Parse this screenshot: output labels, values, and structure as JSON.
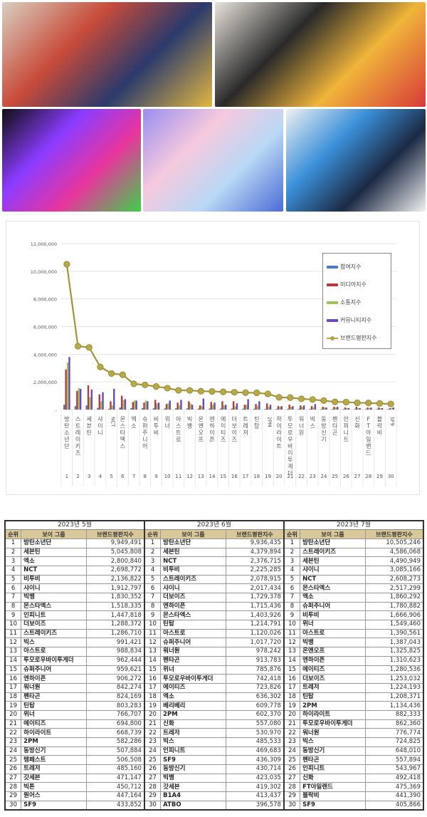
{
  "photos": [
    {
      "label": "group-photo-1",
      "colors": [
        "#d9cfc0",
        "#c84b3a",
        "#2b3a6b",
        "#e2b642"
      ]
    },
    {
      "label": "group-photo-2",
      "colors": [
        "#e8e4dc",
        "#2a2a2a",
        "#f0b43a",
        "#d73a3a"
      ]
    },
    {
      "label": "group-photo-3",
      "colors": [
        "#0f0f12",
        "#8b3cff",
        "#e8359c",
        "#3ecf4a"
      ]
    },
    {
      "label": "group-photo-4",
      "colors": [
        "#9a8ef0",
        "#f6c9de",
        "#b9d8f5",
        "#4a6bd6"
      ]
    },
    {
      "label": "group-photo-5",
      "colors": [
        "#eef0f2",
        "#3a8fd9",
        "#1c2a44",
        "#f2f2f2"
      ]
    }
  ],
  "chart_data": {
    "type": "bar+line",
    "title": "",
    "xlabel": "",
    "ylabel": "",
    "ylim": [
      0,
      12000000
    ],
    "yticks": [
      "-",
      "2,000,000",
      "4,000,000",
      "6,000,000",
      "8,000,000",
      "10,000,000",
      "12,000,000"
    ],
    "grid": true,
    "legend_position": "right-inside",
    "categories": [
      "방탄소년단",
      "스트레이키즈",
      "세븐틴",
      "샤이니",
      "NCT",
      "몬스타엑스",
      "엑소",
      "슈퍼주니어",
      "비투비",
      "위너",
      "아스트로",
      "빅뱅",
      "온앤오프",
      "엔하이픈",
      "에이티즈",
      "더보이즈",
      "트레저",
      "틴탑",
      "2PM",
      "하이라이트",
      "투모로우바이투게더",
      "워너원",
      "빅스",
      "동방신기",
      "펜타곤",
      "인피니트",
      "신화",
      "FT아일랜드",
      "블락비",
      "SF9"
    ],
    "category_numbers": [
      "1",
      "2",
      "3",
      "4",
      "5",
      "6",
      "7",
      "8",
      "9",
      "10",
      "11",
      "12",
      "13",
      "14",
      "15",
      "16",
      "17",
      "18",
      "19",
      "20",
      "21",
      "22",
      "23",
      "24",
      "25",
      "26",
      "27",
      "28",
      "29",
      "30"
    ],
    "series": [
      {
        "name": "참여지수",
        "color": "#4a7bc8",
        "values": [
          350000,
          250000,
          300000,
          120000,
          60000,
          150000,
          100000,
          100000,
          90000,
          80000,
          90000,
          80000,
          70000,
          70000,
          70000,
          70000,
          60000,
          60000,
          50000,
          50000,
          50000,
          50000,
          50000,
          40000,
          40000,
          40000,
          40000,
          40000,
          40000,
          40000
        ]
      },
      {
        "name": "미디어지수",
        "color": "#b83a3a",
        "values": [
          2900000,
          1350000,
          1750000,
          1100000,
          600000,
          1000000,
          550000,
          500000,
          700000,
          400000,
          500000,
          600000,
          300000,
          550000,
          600000,
          600000,
          350000,
          400000,
          450000,
          250000,
          350000,
          300000,
          250000,
          200000,
          200000,
          150000,
          200000,
          150000,
          150000,
          100000
        ]
      },
      {
        "name": "소통지수",
        "color": "#9dc35a",
        "values": [
          3400000,
          1550000,
          900000,
          600000,
          300000,
          700000,
          650000,
          650000,
          450000,
          450000,
          300000,
          450000,
          250000,
          350000,
          300000,
          250000,
          350000,
          250000,
          200000,
          200000,
          200000,
          200000,
          150000,
          150000,
          150000,
          100000,
          100000,
          100000,
          100000,
          100000
        ]
      },
      {
        "name": "커뮤니티지수",
        "color": "#6a4ab8",
        "values": [
          3800000,
          1500000,
          1450000,
          1250000,
          1500000,
          750000,
          650000,
          600000,
          500000,
          650000,
          700000,
          350000,
          800000,
          500000,
          350000,
          450000,
          750000,
          600000,
          350000,
          250000,
          250000,
          300000,
          400000,
          150000,
          200000,
          100000,
          100000,
          150000,
          100000,
          150000
        ]
      },
      {
        "name": "브랜드평판지수",
        "color": "#b5a643",
        "values": [
          10505246,
          4586068,
          4490949,
          3085166,
          2608273,
          2517299,
          1860292,
          1780882,
          1666906,
          1549460,
          1390561,
          1387043,
          1325825,
          1310623,
          1280536,
          1253032,
          1224193,
          1208371,
          1134436,
          882333,
          862360,
          776774,
          724825,
          648010,
          557894,
          543967,
          492418,
          475369,
          441390,
          405866
        ]
      }
    ]
  },
  "table": {
    "columns": [
      "순위",
      "보이 그룹",
      "브랜드평판지수"
    ],
    "months": [
      {
        "title": "2023년 5월",
        "rows": [
          [
            "1",
            "방탄소년단",
            "9,949,491"
          ],
          [
            "2",
            "세븐틴",
            "5,045,808"
          ],
          [
            "3",
            "엑소",
            "2,800,840"
          ],
          [
            "4",
            "NCT",
            "2,698,772"
          ],
          [
            "5",
            "비투비",
            "2,136,822"
          ],
          [
            "6",
            "샤이니",
            "1,912,797"
          ],
          [
            "7",
            "빅뱅",
            "1,830,352"
          ],
          [
            "8",
            "몬스타엑스",
            "1,518,335"
          ],
          [
            "9",
            "인피니트",
            "1,447,818"
          ],
          [
            "10",
            "더보이즈",
            "1,288,372"
          ],
          [
            "11",
            "스트레이키즈",
            "1,286,710"
          ],
          [
            "12",
            "빅스",
            "991,421"
          ],
          [
            "13",
            "아스트로",
            "988,834"
          ],
          [
            "14",
            "투모로우바이투게더",
            "962,444"
          ],
          [
            "15",
            "슈퍼주니어",
            "959,621"
          ],
          [
            "16",
            "엔하이픈",
            "906,272"
          ],
          [
            "17",
            "워너원",
            "842,274"
          ],
          [
            "18",
            "펜타곤",
            "824,169"
          ],
          [
            "19",
            "틴탑",
            "803,283"
          ],
          [
            "20",
            "위너",
            "766,707"
          ],
          [
            "21",
            "에이티즈",
            "694,800"
          ],
          [
            "22",
            "하이라이트",
            "668,739"
          ],
          [
            "23",
            "2PM",
            "582,286"
          ],
          [
            "24",
            "동방신기",
            "507,884"
          ],
          [
            "25",
            "템페스트",
            "506,508"
          ],
          [
            "26",
            "트레저",
            "485,160"
          ],
          [
            "27",
            "갓세븐",
            "471,147"
          ],
          [
            "28",
            "빅톤",
            "450,712"
          ],
          [
            "29",
            "원어스",
            "447,164"
          ],
          [
            "30",
            "SF9",
            "433,852"
          ]
        ]
      },
      {
        "title": "2023년 6월",
        "rows": [
          [
            "1",
            "방탄소년단",
            "9,936,435"
          ],
          [
            "2",
            "세븐틴",
            "4,379,894"
          ],
          [
            "3",
            "NCT",
            "2,376,715"
          ],
          [
            "4",
            "비투비",
            "2,225,285"
          ],
          [
            "5",
            "스트레이키즈",
            "2,078,915"
          ],
          [
            "6",
            "샤이니",
            "2,017,434"
          ],
          [
            "7",
            "더보이즈",
            "1,729,378"
          ],
          [
            "8",
            "엔하이픈",
            "1,715,436"
          ],
          [
            "9",
            "몬스타엑스",
            "1,403,926"
          ],
          [
            "10",
            "틴탑",
            "1,214,791"
          ],
          [
            "11",
            "아스트로",
            "1,120,026"
          ],
          [
            "12",
            "슈퍼주니어",
            "1,017,720"
          ],
          [
            "13",
            "워너원",
            "978,242"
          ],
          [
            "14",
            "펜타곤",
            "913,783"
          ],
          [
            "15",
            "위너",
            "785,876"
          ],
          [
            "16",
            "투모로우바이투게더",
            "742,418"
          ],
          [
            "17",
            "에이티즈",
            "723,826"
          ],
          [
            "18",
            "엑소",
            "636,302"
          ],
          [
            "19",
            "베리베리",
            "609,778"
          ],
          [
            "20",
            "2PM",
            "602,370"
          ],
          [
            "21",
            "신화",
            "557,080"
          ],
          [
            "22",
            "트레저",
            "530,970"
          ],
          [
            "23",
            "빅스",
            "485,533"
          ],
          [
            "24",
            "인피니트",
            "469,683"
          ],
          [
            "25",
            "SF9",
            "436,309"
          ],
          [
            "26",
            "동방신기",
            "430,714"
          ],
          [
            "27",
            "빅뱅",
            "423,035"
          ],
          [
            "28",
            "갓세븐",
            "419,302"
          ],
          [
            "29",
            "B1A4",
            "413,437"
          ],
          [
            "30",
            "ATBO",
            "396,578"
          ]
        ]
      },
      {
        "title": "2023년 7월",
        "rows": [
          [
            "1",
            "방탄소년단",
            "10,505,246"
          ],
          [
            "2",
            "스트레이키즈",
            "4,586,068"
          ],
          [
            "3",
            "세븐틴",
            "4,490,949"
          ],
          [
            "4",
            "샤이니",
            "3,085,166"
          ],
          [
            "5",
            "NCT",
            "2,608,273"
          ],
          [
            "6",
            "몬스타엑스",
            "2,517,299"
          ],
          [
            "7",
            "엑소",
            "1,860,292"
          ],
          [
            "8",
            "슈퍼주니어",
            "1,780,882"
          ],
          [
            "9",
            "비투비",
            "1,666,906"
          ],
          [
            "10",
            "위너",
            "1,549,460"
          ],
          [
            "11",
            "아스트로",
            "1,390,561"
          ],
          [
            "12",
            "빅뱅",
            "1,387,043"
          ],
          [
            "13",
            "온앤오프",
            "1,325,825"
          ],
          [
            "14",
            "엔하이픈",
            "1,310,623"
          ],
          [
            "15",
            "에이티즈",
            "1,280,536"
          ],
          [
            "16",
            "더보이즈",
            "1,253,032"
          ],
          [
            "17",
            "트레저",
            "1,224,193"
          ],
          [
            "18",
            "틴탑",
            "1,208,371"
          ],
          [
            "19",
            "2PM",
            "1,134,436"
          ],
          [
            "20",
            "하이라이트",
            "882,333"
          ],
          [
            "21",
            "투모로우바이투게더",
            "862,360"
          ],
          [
            "22",
            "워너원",
            "776,774"
          ],
          [
            "23",
            "빅스",
            "724,825"
          ],
          [
            "24",
            "동방신기",
            "648,010"
          ],
          [
            "25",
            "펜타곤",
            "557,894"
          ],
          [
            "26",
            "인피니트",
            "543,967"
          ],
          [
            "27",
            "신화",
            "492,418"
          ],
          [
            "28",
            "FT아일랜드",
            "475,369"
          ],
          [
            "29",
            "블락비",
            "441,390"
          ],
          [
            "30",
            "SF9",
            "405,866"
          ]
        ]
      }
    ]
  }
}
